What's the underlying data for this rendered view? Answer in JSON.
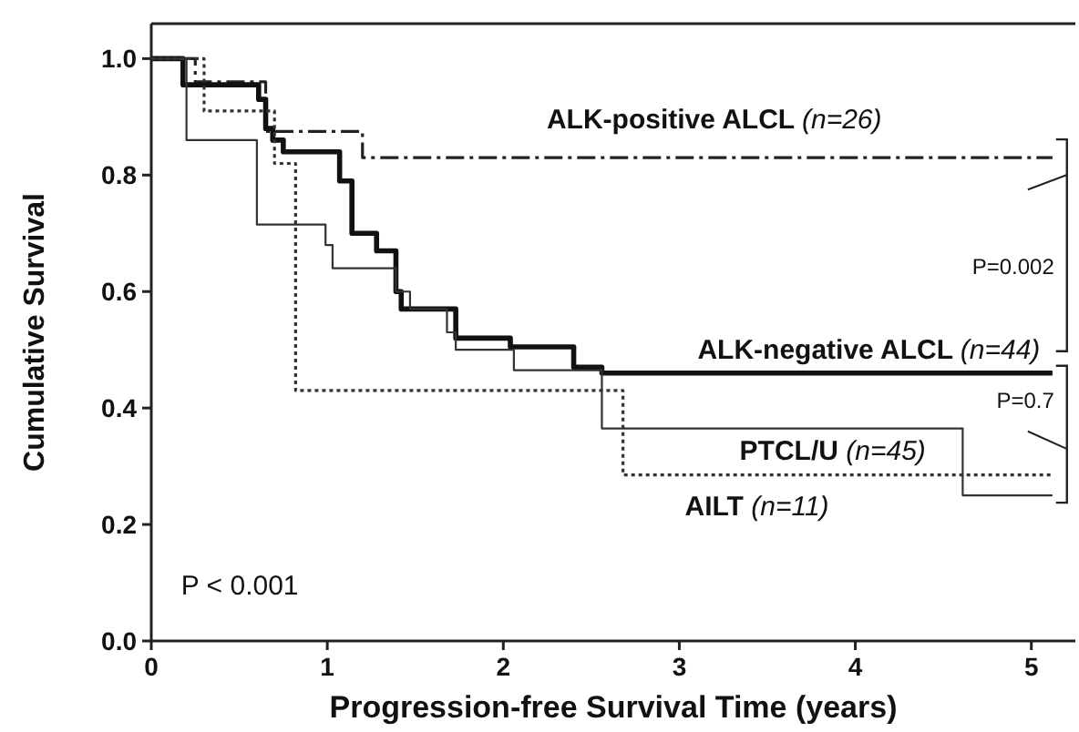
{
  "chart_data": {
    "type": "step",
    "xlabel": "Progression-free Survival Time (years)",
    "ylabel": "Cumulative Survival",
    "xlim": [
      0,
      5.25
    ],
    "ylim": [
      0,
      1.06
    ],
    "xticks": [
      0,
      1,
      2,
      3,
      4,
      5
    ],
    "yticks": [
      {
        "value": 0,
        "label": "0.0"
      },
      {
        "value": 0.2,
        "label": "0.2"
      },
      {
        "value": 0.4,
        "label": "0.4"
      },
      {
        "value": 0.6,
        "label": "0.6"
      },
      {
        "value": 0.8,
        "label": "0.8"
      },
      {
        "value": 1,
        "label": "1.0"
      }
    ],
    "grid": false,
    "series": [
      {
        "name": "ALK-positive ALCL (n=26)",
        "color": "#222222",
        "line_style": "dashed",
        "x": [
          0,
          0.25,
          0.65,
          1.2,
          5.12
        ],
        "values": [
          1.0,
          0.96,
          0.875,
          0.83,
          0.83
        ]
      },
      {
        "name": "ALK-negative ALCL (n=44)",
        "color": "#111111",
        "line_style": "solid",
        "x": [
          0,
          0.18,
          0.61,
          0.65,
          0.69,
          0.75,
          1.07,
          1.14,
          1.28,
          1.39,
          1.42,
          1.73,
          2.04,
          2.4,
          2.56,
          5.12
        ],
        "values": [
          1.0,
          0.955,
          0.93,
          0.88,
          0.86,
          0.84,
          0.79,
          0.7,
          0.67,
          0.6,
          0.57,
          0.52,
          0.505,
          0.47,
          0.46,
          0.46
        ]
      },
      {
        "name": "PTCL/U (n=45)",
        "color": "#333333",
        "line_style": "solid",
        "x": [
          0,
          0.2,
          0.6,
          0.99,
          1.03,
          1.39,
          1.47,
          1.68,
          1.73,
          2.06,
          2.56,
          4.61,
          5.12
        ],
        "values": [
          1.0,
          0.86,
          0.715,
          0.68,
          0.64,
          0.6,
          0.57,
          0.53,
          0.5,
          0.465,
          0.365,
          0.25,
          0.25
        ]
      },
      {
        "name": "AILT (n=11)",
        "color": "#333333",
        "line_style": "dotted",
        "x": [
          0,
          0.3,
          0.7,
          0.82,
          2.68,
          5.12
        ],
        "values": [
          1.0,
          0.91,
          0.82,
          0.43,
          0.285,
          0.285
        ]
      }
    ],
    "annotations": [
      "P=0.002",
      "P=0.7",
      "P < 0.001"
    ]
  }
}
